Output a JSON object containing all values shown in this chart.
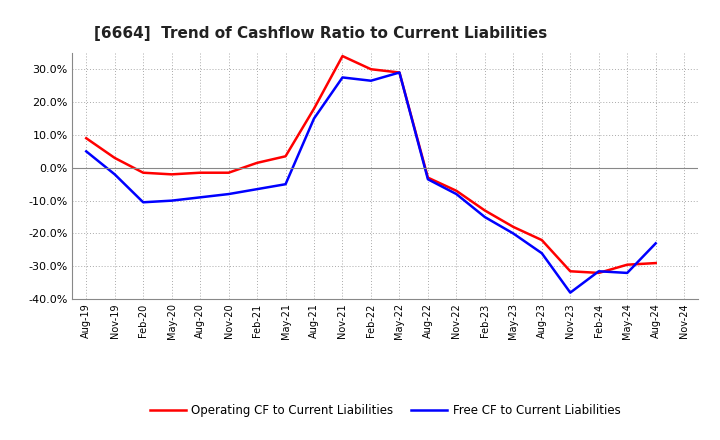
{
  "title": "[6664]  Trend of Cashflow Ratio to Current Liabilities",
  "x_labels": [
    "Aug-19",
    "Nov-19",
    "Feb-20",
    "May-20",
    "Aug-20",
    "Nov-20",
    "Feb-21",
    "May-21",
    "Aug-21",
    "Nov-21",
    "Feb-22",
    "May-22",
    "Aug-22",
    "Nov-22",
    "Feb-23",
    "May-23",
    "Aug-23",
    "Nov-23",
    "Feb-24",
    "May-24",
    "Aug-24",
    "Nov-24"
  ],
  "operating_cf": [
    9.0,
    3.0,
    -1.5,
    -2.0,
    -1.5,
    -1.5,
    1.5,
    3.5,
    18.0,
    34.0,
    30.0,
    29.0,
    -3.0,
    -7.0,
    -13.0,
    -18.0,
    -22.0,
    -31.5,
    -32.0,
    -29.5,
    -29.0,
    null
  ],
  "free_cf": [
    5.0,
    -2.0,
    -10.5,
    -10.0,
    -9.0,
    -8.0,
    -6.5,
    -5.0,
    15.0,
    27.5,
    26.5,
    29.0,
    -3.5,
    -8.0,
    -15.0,
    -20.0,
    -26.0,
    -38.0,
    -31.5,
    -32.0,
    -23.0,
    null
  ],
  "ylim": [
    -40.0,
    35.0
  ],
  "yticks": [
    -40.0,
    -30.0,
    -20.0,
    -10.0,
    0.0,
    10.0,
    20.0,
    30.0
  ],
  "operating_color": "#ff0000",
  "free_color": "#0000ff",
  "background_color": "#ffffff",
  "plot_bg_color": "#ffffff",
  "grid_color": "#aaaaaa",
  "legend_labels": [
    "Operating CF to Current Liabilities",
    "Free CF to Current Liabilities"
  ]
}
